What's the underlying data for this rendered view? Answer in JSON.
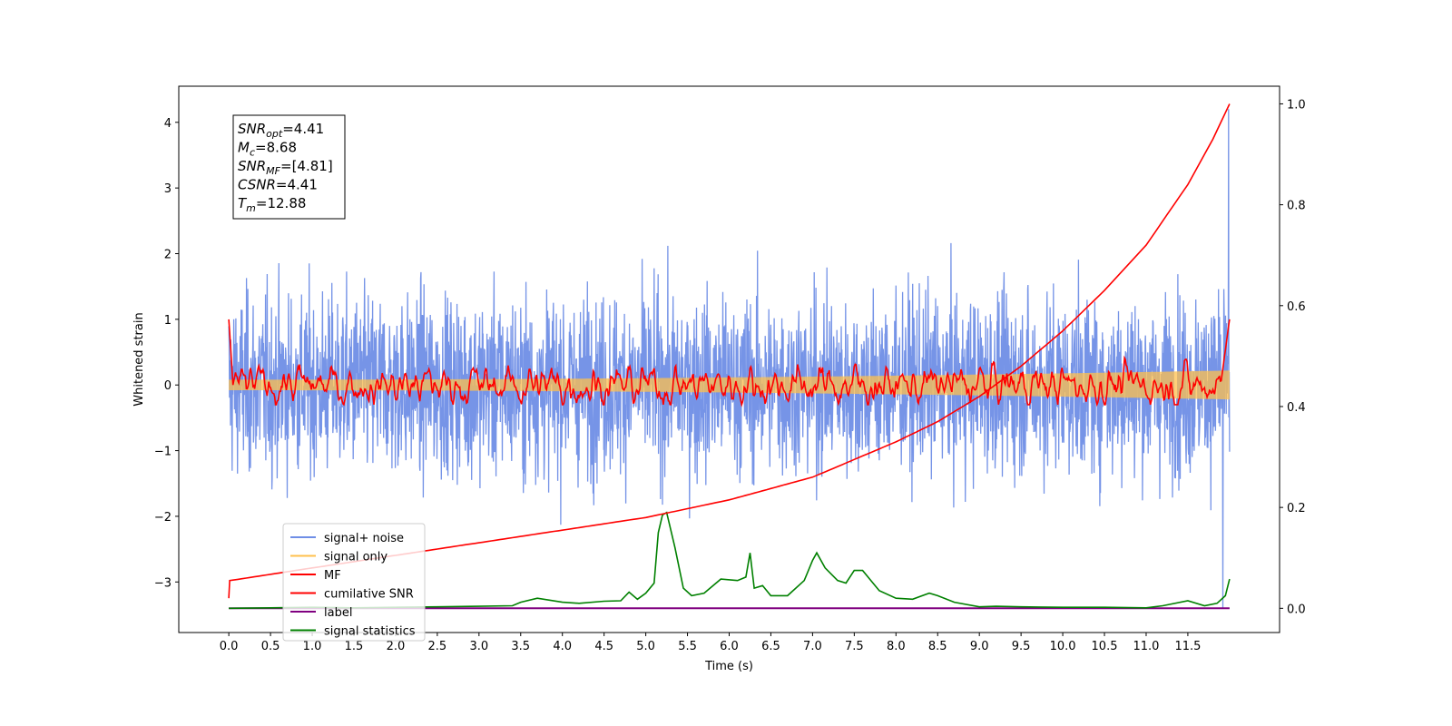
{
  "chart_data": {
    "type": "line",
    "xlabel": "Time (s)",
    "ylabel": "Whitened strain",
    "xlim": [
      -0.6,
      12.6
    ],
    "ylim": [
      -3.77,
      4.55
    ],
    "y2lim": [
      -0.048,
      1.035
    ],
    "xticks": [
      0.0,
      0.5,
      1.0,
      1.5,
      2.0,
      2.5,
      3.0,
      3.5,
      4.0,
      4.5,
      5.0,
      5.5,
      6.0,
      6.5,
      7.0,
      7.5,
      8.0,
      8.5,
      9.0,
      9.5,
      10.0,
      10.5,
      11.0,
      11.5
    ],
    "xtick_labels": [
      "0.0",
      "0.5",
      "1.0",
      "1.5",
      "2.0",
      "2.5",
      "3.0",
      "3.5",
      "4.0",
      "4.5",
      "5.0",
      "5.5",
      "6.0",
      "6.5",
      "7.0",
      "7.5",
      "8.0",
      "8.5",
      "9.0",
      "9.5",
      "10.0",
      "10.5",
      "11.0",
      "11.5"
    ],
    "yticks": [
      -3,
      -2,
      -1,
      0,
      1,
      2,
      3,
      4
    ],
    "ytick_labels": [
      "−3",
      "−2",
      "−1",
      "0",
      "1",
      "2",
      "3",
      "4"
    ],
    "y2ticks": [
      0.0,
      0.2,
      0.4,
      0.6,
      0.8,
      1.0
    ],
    "y2tick_labels": [
      "0.0",
      "0.2",
      "0.4",
      "0.6",
      "0.8",
      "1.0"
    ],
    "grid": false,
    "legend_placement": "lower-left",
    "legend": [
      {
        "label": "signal+ noise",
        "color": "#6f8ee6"
      },
      {
        "label": "signal only",
        "color": "#ffc04d"
      },
      {
        "label": "MF",
        "color": "#ff0000"
      },
      {
        "label": "cumilative SNR",
        "color": "#ff0000"
      },
      {
        "label": "label",
        "color": "#800080"
      },
      {
        "label": "signal statistics",
        "color": "#008000"
      }
    ],
    "annotations": {
      "snr_opt": {
        "name": "SNR",
        "sub": "opt",
        "value": "=4.41"
      },
      "mc": {
        "name": "M",
        "sub": "c",
        "value": "=8.68"
      },
      "snr_mf": {
        "name": "SNR",
        "sub": "MF",
        "value": "=[4.81]"
      },
      "csnr": {
        "name": "CSNR",
        "sub": "",
        "value": "=4.41"
      },
      "tm": {
        "name": "T",
        "sub": "m",
        "value": "=12.88"
      }
    },
    "series": [
      {
        "name": "signal+ noise",
        "axis": "left",
        "color": "#6f8ee6",
        "x_range": [
          0.0,
          12.0
        ],
        "amplitude_approx": [
          -3.4,
          4.2
        ],
        "description_values": {
          "typical_upper": 2.5,
          "typical_lower": -2.4
        }
      },
      {
        "name": "signal only",
        "axis": "left",
        "color": "#ffc04d",
        "x_range": [
          0.0,
          12.0
        ],
        "envelope_start": 0.08,
        "envelope_end": 0.22
      },
      {
        "name": "MF",
        "axis": "left",
        "color": "#ff0000",
        "x_range": [
          0.0,
          12.0
        ],
        "start_value": 1.0,
        "end_value": 1.0,
        "typical_range": [
          -0.3,
          0.6
        ]
      },
      {
        "name": "cumilative SNR",
        "axis": "right",
        "color": "#ff0000",
        "x": [
          0.0,
          0.01,
          1.0,
          2.0,
          3.0,
          4.0,
          5.0,
          6.0,
          7.0,
          8.0,
          8.5,
          9.0,
          9.5,
          10.0,
          10.5,
          11.0,
          11.5,
          11.8,
          12.0
        ],
        "y": [
          0.02,
          0.055,
          0.08,
          0.105,
          0.13,
          0.155,
          0.18,
          0.215,
          0.26,
          0.33,
          0.37,
          0.42,
          0.48,
          0.55,
          0.63,
          0.72,
          0.84,
          0.93,
          1.0
        ]
      },
      {
        "name": "label",
        "axis": "right",
        "color": "#800080",
        "x": [
          0.0,
          12.0
        ],
        "y": [
          0.0,
          0.0
        ]
      },
      {
        "name": "signal statistics",
        "axis": "right",
        "color": "#008000",
        "x": [
          0.0,
          0.5,
          1.0,
          1.5,
          2.0,
          2.5,
          3.0,
          3.4,
          3.5,
          3.7,
          4.0,
          4.2,
          4.5,
          4.7,
          4.8,
          4.9,
          5.0,
          5.1,
          5.15,
          5.2,
          5.25,
          5.35,
          5.45,
          5.55,
          5.7,
          5.9,
          6.1,
          6.2,
          6.25,
          6.3,
          6.4,
          6.5,
          6.7,
          6.9,
          7.0,
          7.05,
          7.15,
          7.3,
          7.4,
          7.5,
          7.6,
          7.7,
          7.8,
          8.0,
          8.2,
          8.4,
          8.5,
          8.7,
          9.0,
          9.2,
          9.5,
          10.0,
          10.5,
          11.0,
          11.2,
          11.5,
          11.7,
          11.85,
          11.95,
          12.0
        ],
        "y": [
          0.0,
          0.001,
          0.002,
          0.001,
          0.002,
          0.003,
          0.004,
          0.005,
          0.012,
          0.02,
          0.012,
          0.01,
          0.014,
          0.015,
          0.032,
          0.018,
          0.03,
          0.05,
          0.15,
          0.185,
          0.19,
          0.12,
          0.04,
          0.025,
          0.03,
          0.058,
          0.055,
          0.062,
          0.11,
          0.04,
          0.045,
          0.025,
          0.025,
          0.055,
          0.095,
          0.11,
          0.08,
          0.055,
          0.05,
          0.075,
          0.075,
          0.055,
          0.035,
          0.02,
          0.018,
          0.03,
          0.025,
          0.012,
          0.003,
          0.004,
          0.003,
          0.002,
          0.002,
          0.001,
          0.005,
          0.015,
          0.005,
          0.01,
          0.025,
          0.058
        ]
      }
    ]
  }
}
